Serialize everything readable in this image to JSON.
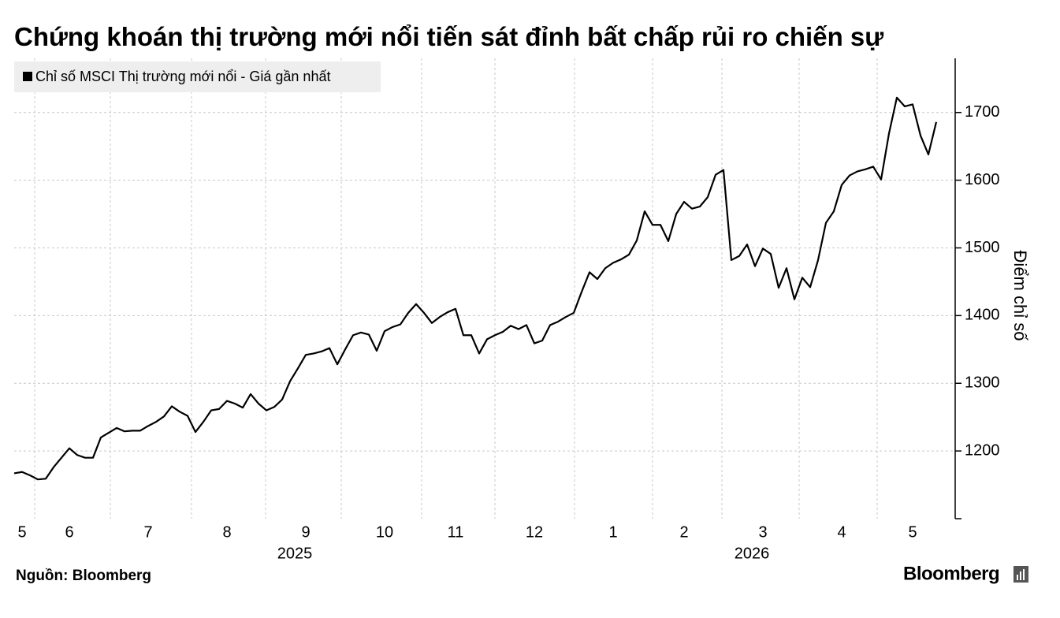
{
  "chart_data": {
    "type": "line",
    "title": "Chứng khoán thị trường mới nổi tiến sát đỉnh bất chấp rủi ro chiến sự",
    "y_label": "Điểm chỉ số",
    "source": "Nguồn: Bloomberg",
    "brand": "Bloomberg",
    "x_years": [
      "2025",
      "2026"
    ],
    "categories": [
      null,
      "5",
      null,
      null,
      null,
      null,
      null,
      "6",
      null,
      null,
      null,
      null,
      null,
      null,
      null,
      null,
      null,
      "7",
      null,
      null,
      null,
      null,
      null,
      null,
      null,
      null,
      null,
      "8",
      null,
      null,
      null,
      null,
      null,
      null,
      null,
      null,
      null,
      "9",
      null,
      null,
      null,
      null,
      null,
      null,
      null,
      null,
      null,
      "10",
      null,
      null,
      null,
      null,
      null,
      null,
      null,
      null,
      "11",
      null,
      null,
      null,
      null,
      null,
      null,
      null,
      null,
      null,
      "12",
      null,
      null,
      null,
      null,
      null,
      null,
      null,
      null,
      null,
      "1",
      null,
      null,
      null,
      null,
      null,
      null,
      null,
      null,
      "2",
      null,
      null,
      null,
      null,
      null,
      null,
      null,
      null,
      null,
      "3",
      null,
      null,
      null,
      null,
      null,
      null,
      null,
      null,
      null,
      "4",
      null,
      null,
      null,
      null,
      null,
      null,
      null,
      null,
      "5",
      null,
      null,
      null
    ],
    "series": [
      {
        "name": "Chỉ số MSCI Thị trường mới nổi - Giá gần nhất",
        "color": "#000000",
        "values": [
          1167,
          1169,
          1164,
          1158,
          1159,
          1176,
          1190,
          1204,
          1194,
          1190,
          1190,
          1220,
          1227,
          1234,
          1229,
          1230,
          1230,
          1237,
          1243,
          1251,
          1266,
          1258,
          1252,
          1228,
          1243,
          1260,
          1262,
          1274,
          1270,
          1264,
          1284,
          1270,
          1260,
          1265,
          1276,
          1303,
          1322,
          1342,
          1344,
          1347,
          1352,
          1328,
          1350,
          1371,
          1375,
          1372,
          1348,
          1377,
          1383,
          1387,
          1404,
          1417,
          1404,
          1389,
          1398,
          1405,
          1410,
          1371,
          1371,
          1344,
          1365,
          1371,
          1376,
          1385,
          1380,
          1386,
          1359,
          1363,
          1386,
          1391,
          1398,
          1404,
          1435,
          1464,
          1454,
          1470,
          1478,
          1483,
          1490,
          1511,
          1554,
          1534,
          1534,
          1510,
          1550,
          1568,
          1558,
          1561,
          1575,
          1608,
          1615,
          1482,
          1488,
          1505,
          1473,
          1499,
          1491,
          1441,
          1470,
          1424,
          1456,
          1442,
          1482,
          1537,
          1554,
          1593,
          1607,
          1613,
          1616,
          1620,
          1601,
          1669,
          1722,
          1709,
          1712,
          1666,
          1638,
          1686
        ]
      }
    ],
    "ylim": [
      1100,
      1780
    ],
    "yticks": [
      1200,
      1300,
      1400,
      1500,
      1600,
      1700
    ],
    "grid": true,
    "legend": "top-left"
  }
}
